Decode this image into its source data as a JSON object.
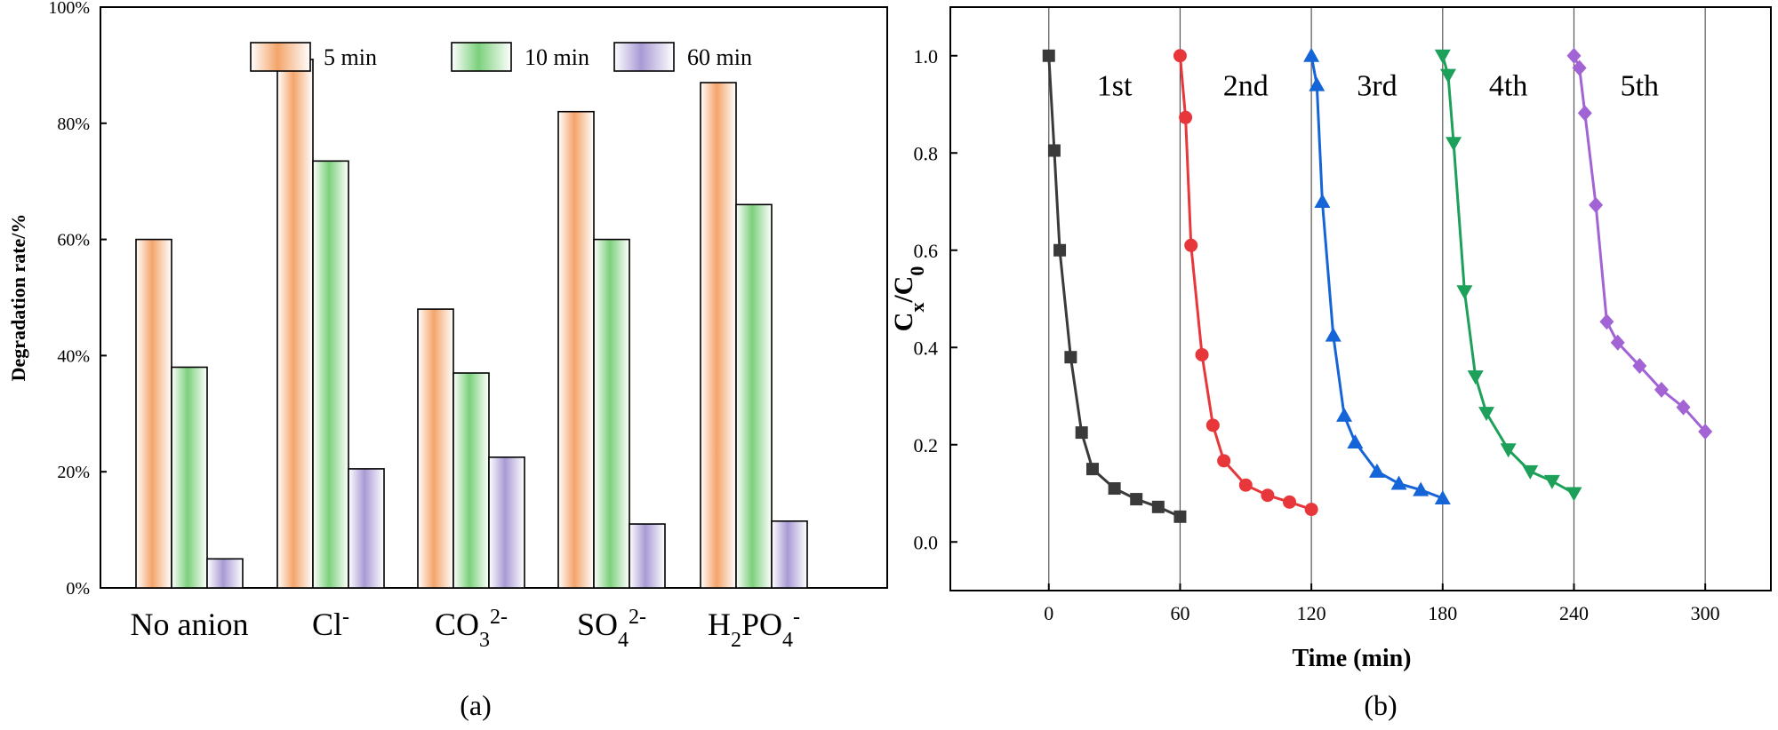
{
  "chart_data": [
    {
      "type": "bar",
      "panel": "(a)",
      "ylabel": "Degradation rate/%",
      "ylim": [
        0,
        100
      ],
      "yticks": [
        0,
        20,
        40,
        60,
        80,
        100
      ],
      "ytick_labels": [
        "0%",
        "20%",
        "40%",
        "60%",
        "80%",
        "100%"
      ],
      "categories": [
        "No anion",
        "Cl-",
        "CO32-",
        "SO42-",
        "H2PO4-"
      ],
      "category_parts": [
        {
          "base": "No anion",
          "sub": "",
          "mid": "",
          "sup": ""
        },
        {
          "base": "Cl",
          "sub": "",
          "mid": "",
          "sup": "-"
        },
        {
          "base": "CO",
          "sub": "3",
          "mid": "",
          "sup": "2-"
        },
        {
          "base": "SO",
          "sub": "4",
          "mid": "",
          "sup": "2-"
        },
        {
          "base": "H",
          "sub": "2",
          "mid": "PO",
          "sup": "-",
          "sub2": "4"
        }
      ],
      "series": [
        {
          "name": "5 min",
          "values": [
            60,
            91,
            48,
            82,
            87
          ],
          "color": "#f4a46a"
        },
        {
          "name": "10 min",
          "values": [
            38,
            73.5,
            37,
            60,
            66
          ],
          "color": "#7bd07b"
        },
        {
          "name": "60 min",
          "values": [
            5,
            20.5,
            22.5,
            11,
            11.5
          ],
          "color": "#a89ad4"
        }
      ],
      "legend": "top"
    },
    {
      "type": "line",
      "panel": "(b)",
      "xlabel": "Time (min)",
      "ylabel_base": "C",
      "ylabel_sub1": "x",
      "ylabel_sep": "/C",
      "ylabel_sub2": "0",
      "xlim": [
        -45,
        330
      ],
      "ylim": [
        -0.1,
        1.1
      ],
      "xticks": [
        0,
        60,
        120,
        180,
        240,
        300
      ],
      "yticks": [
        0.0,
        0.2,
        0.4,
        0.6,
        0.8,
        1.0
      ],
      "ytick_labels": [
        "0.0",
        "0.2",
        "0.4",
        "0.6",
        "0.8",
        "1.0"
      ],
      "vlines": [
        0,
        60,
        120,
        180,
        240,
        300
      ],
      "series": [
        {
          "name": "1st",
          "color": "#3a3a3a",
          "marker": "square",
          "x": [
            0,
            2.5,
            5,
            10,
            15,
            20,
            30,
            40,
            50,
            60
          ],
          "y": [
            1.0,
            0.805,
            0.6,
            0.38,
            0.225,
            0.15,
            0.11,
            0.088,
            0.072,
            0.052
          ]
        },
        {
          "name": "2nd",
          "color": "#e8373a",
          "marker": "circle",
          "x": [
            60,
            62.5,
            65,
            70,
            75,
            80,
            90,
            100,
            110,
            120
          ],
          "y": [
            1.0,
            0.873,
            0.61,
            0.385,
            0.24,
            0.167,
            0.117,
            0.096,
            0.082,
            0.067
          ]
        },
        {
          "name": "3rd",
          "color": "#1565d8",
          "marker": "triangle-up",
          "x": [
            120,
            122.5,
            125,
            130,
            135,
            140,
            150,
            160,
            170,
            180
          ],
          "y": [
            1.0,
            0.94,
            0.7,
            0.425,
            0.26,
            0.205,
            0.145,
            0.12,
            0.107,
            0.09
          ]
        },
        {
          "name": "4th",
          "color": "#1ca05a",
          "marker": "triangle-down",
          "x": [
            180,
            182.5,
            185,
            190,
            195,
            200,
            210,
            220,
            230,
            240
          ],
          "y": [
            1.0,
            0.96,
            0.82,
            0.515,
            0.34,
            0.265,
            0.19,
            0.145,
            0.125,
            0.1
          ]
        },
        {
          "name": "5th",
          "color": "#a264d4",
          "marker": "diamond",
          "x": [
            240,
            242.5,
            245,
            250,
            255,
            260,
            270,
            280,
            290,
            300
          ],
          "y": [
            1.0,
            0.975,
            0.882,
            0.693,
            0.453,
            0.41,
            0.362,
            0.313,
            0.277,
            0.227
          ]
        }
      ],
      "annotations": [
        "1st",
        "2nd",
        "3rd",
        "4th",
        "5th"
      ],
      "annotation_at": [
        [
          30,
          0.94
        ],
        [
          90,
          0.94
        ],
        [
          150,
          0.94
        ],
        [
          210,
          0.94
        ],
        [
          270,
          0.94
        ]
      ]
    }
  ]
}
